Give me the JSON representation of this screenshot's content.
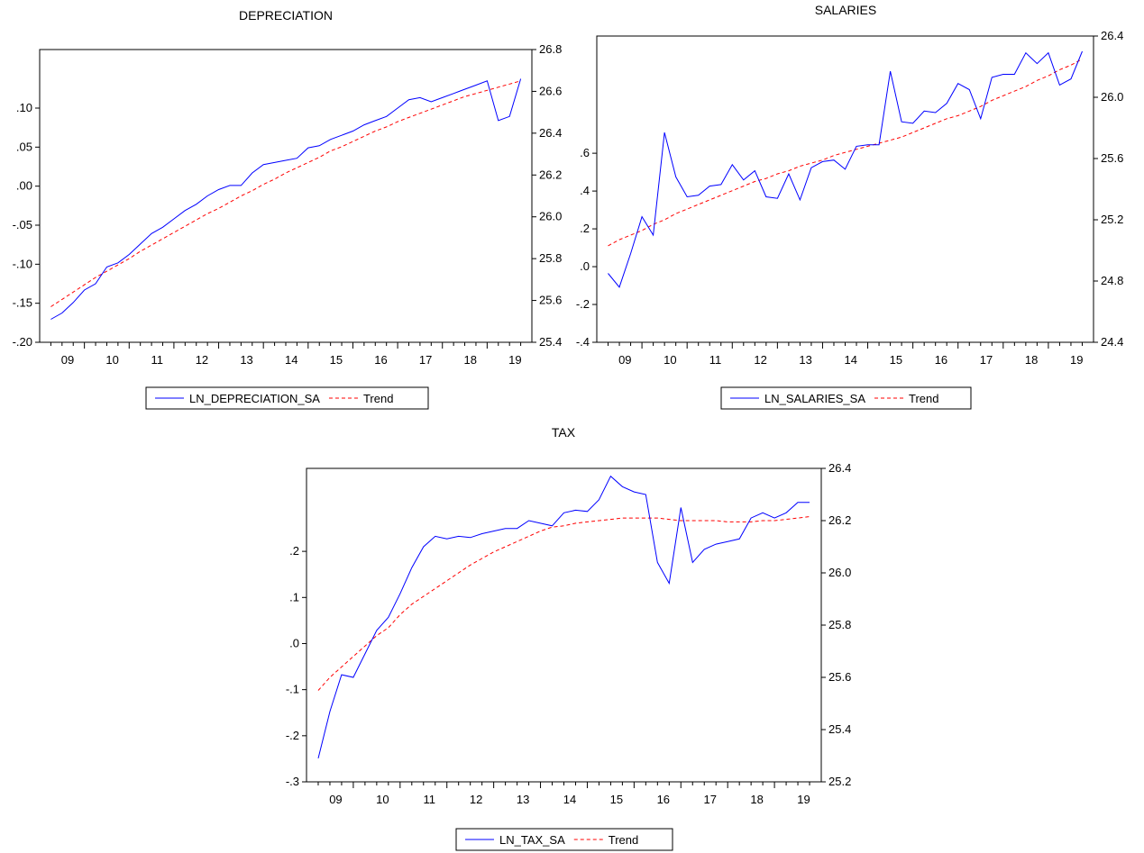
{
  "chart_data": [
    {
      "type": "line",
      "title": "DEPRECIATION",
      "x_labels": [
        "09",
        "10",
        "11",
        "12",
        "13",
        "14",
        "15",
        "16",
        "17",
        "18",
        "19"
      ],
      "left_axis": {
        "ticks": [
          ".10",
          ".05",
          ".00",
          "-.05",
          "-.10",
          "-.15",
          "-.20"
        ],
        "values": [
          0.1,
          0.05,
          0.0,
          -0.05,
          -0.1,
          -0.15,
          -0.2
        ],
        "ylim": [
          -0.2,
          0.175
        ]
      },
      "right_axis": {
        "ticks": [
          "26.8",
          "26.6",
          "26.4",
          "26.2",
          "26.0",
          "25.8",
          "25.6",
          "25.4"
        ],
        "values": [
          26.8,
          26.6,
          26.4,
          26.2,
          26.0,
          25.8,
          25.6,
          25.4
        ],
        "ylim": [
          25.4,
          26.8
        ]
      },
      "series": [
        {
          "name": "LN_DEPRECIATION_SA",
          "axis": "right",
          "color": "#0000ff",
          "dash": "solid",
          "values": [
            25.51,
            25.54,
            25.59,
            25.65,
            25.68,
            25.76,
            25.78,
            25.82,
            25.87,
            25.92,
            25.95,
            25.99,
            26.03,
            26.06,
            26.1,
            26.13,
            26.15,
            26.15,
            26.21,
            26.25,
            26.26,
            26.27,
            26.28,
            26.33,
            26.34,
            26.37,
            26.39,
            26.41,
            26.44,
            26.46,
            26.48,
            26.52,
            26.56,
            26.57,
            26.55,
            26.57,
            26.59,
            26.61,
            26.63,
            26.65,
            26.46,
            26.48,
            26.66
          ]
        },
        {
          "name": "Trend",
          "axis": "right",
          "color": "#ff0000",
          "dash": "dashed",
          "values": [
            25.57,
            25.605,
            25.64,
            25.675,
            25.71,
            25.74,
            25.77,
            25.8,
            25.835,
            25.865,
            25.895,
            25.925,
            25.955,
            25.985,
            26.015,
            26.04,
            26.07,
            26.1,
            26.125,
            26.155,
            26.18,
            26.21,
            26.235,
            26.26,
            26.285,
            26.315,
            26.335,
            26.36,
            26.385,
            26.41,
            26.43,
            26.455,
            26.475,
            26.495,
            26.515,
            26.535,
            26.555,
            26.575,
            26.59,
            26.605,
            26.62,
            26.635,
            26.65
          ]
        }
      ],
      "legend": [
        "LN_DEPRECIATION_SA",
        "Trend"
      ]
    },
    {
      "type": "line",
      "title": "SALARIES",
      "x_labels": [
        "09",
        "10",
        "11",
        "12",
        "13",
        "14",
        "15",
        "16",
        "17",
        "18",
        "19"
      ],
      "left_axis": {
        "ticks": [
          ".6",
          ".4",
          ".2",
          ".0",
          "-.2",
          "-.4"
        ],
        "values": [
          0.6,
          0.4,
          0.2,
          0.0,
          -0.2,
          -0.4
        ],
        "ylim": [
          -0.4,
          1.22
        ]
      },
      "right_axis": {
        "ticks": [
          "26.4",
          "26.0",
          "25.6",
          "25.2",
          "24.8",
          "24.4"
        ],
        "values": [
          26.4,
          26.0,
          25.6,
          25.2,
          24.8,
          24.4
        ],
        "ylim": [
          24.4,
          26.4
        ]
      },
      "series": [
        {
          "name": "LN_SALARIES_SA",
          "axis": "right",
          "color": "#0000ff",
          "dash": "solid",
          "values": [
            24.85,
            24.76,
            24.98,
            25.22,
            25.1,
            25.77,
            25.48,
            25.35,
            25.36,
            25.42,
            25.43,
            25.56,
            25.46,
            25.52,
            25.35,
            25.34,
            25.5,
            25.33,
            25.54,
            25.58,
            25.59,
            25.53,
            25.68,
            25.69,
            25.69,
            26.17,
            25.84,
            25.83,
            25.91,
            25.9,
            25.96,
            26.09,
            26.05,
            25.86,
            26.13,
            26.15,
            26.15,
            26.29,
            26.22,
            26.29,
            26.08,
            26.12,
            26.3
          ]
        },
        {
          "name": "Trend",
          "axis": "right",
          "color": "#ff0000",
          "dash": "dashed",
          "values": [
            25.03,
            25.07,
            25.1,
            25.13,
            25.17,
            25.2,
            25.24,
            25.27,
            25.3,
            25.33,
            25.36,
            25.39,
            25.42,
            25.45,
            25.47,
            25.5,
            25.52,
            25.55,
            25.57,
            25.59,
            25.62,
            25.64,
            25.66,
            25.68,
            25.7,
            25.72,
            25.74,
            25.77,
            25.8,
            25.83,
            25.86,
            25.88,
            25.91,
            25.94,
            25.98,
            26.01,
            26.04,
            26.07,
            26.11,
            26.14,
            26.18,
            26.21,
            26.25
          ]
        }
      ],
      "legend": [
        "LN_SALARIES_SA",
        "Trend"
      ]
    },
    {
      "type": "line",
      "title": "TAX",
      "x_labels": [
        "09",
        "10",
        "11",
        "12",
        "13",
        "14",
        "15",
        "16",
        "17",
        "18",
        "19"
      ],
      "left_axis": {
        "ticks": [
          ".2",
          ".1",
          ".0",
          "-.1",
          "-.2",
          "-.3"
        ],
        "values": [
          0.2,
          0.1,
          0.0,
          -0.1,
          -0.2,
          -0.3
        ],
        "ylim": [
          -0.3,
          0.38
        ]
      },
      "right_axis": {
        "ticks": [
          "26.4",
          "26.2",
          "26.0",
          "25.8",
          "25.6",
          "25.4",
          "25.2"
        ],
        "values": [
          26.4,
          26.2,
          26.0,
          25.8,
          25.6,
          25.4,
          25.2
        ],
        "ylim": [
          25.2,
          26.4
        ]
      },
      "series": [
        {
          "name": "LN_TAX_SA",
          "axis": "right",
          "color": "#0000ff",
          "dash": "solid",
          "values": [
            25.29,
            25.47,
            25.61,
            25.6,
            25.69,
            25.78,
            25.83,
            25.92,
            26.02,
            26.1,
            26.14,
            26.13,
            26.14,
            26.135,
            26.15,
            26.16,
            26.17,
            26.17,
            26.2,
            26.19,
            26.18,
            26.23,
            26.24,
            26.235,
            26.28,
            26.37,
            26.33,
            26.31,
            26.3,
            26.04,
            25.96,
            26.25,
            26.04,
            26.09,
            26.11,
            26.12,
            26.13,
            26.21,
            26.23,
            26.21,
            26.23,
            26.27,
            26.27
          ]
        },
        {
          "name": "Trend",
          "axis": "right",
          "color": "#ff0000",
          "dash": "dashed",
          "values": [
            25.55,
            25.6,
            25.64,
            25.68,
            25.72,
            25.76,
            25.79,
            25.84,
            25.88,
            25.91,
            25.94,
            25.97,
            26.0,
            26.03,
            26.055,
            26.08,
            26.1,
            26.12,
            26.14,
            26.16,
            26.175,
            26.18,
            26.19,
            26.195,
            26.2,
            26.205,
            26.21,
            26.21,
            26.21,
            26.21,
            26.205,
            26.2,
            26.2,
            26.2,
            26.2,
            26.195,
            26.195,
            26.195,
            26.2,
            26.2,
            26.205,
            26.21,
            26.215
          ]
        }
      ],
      "legend": [
        "LN_TAX_SA",
        "Trend"
      ]
    }
  ]
}
